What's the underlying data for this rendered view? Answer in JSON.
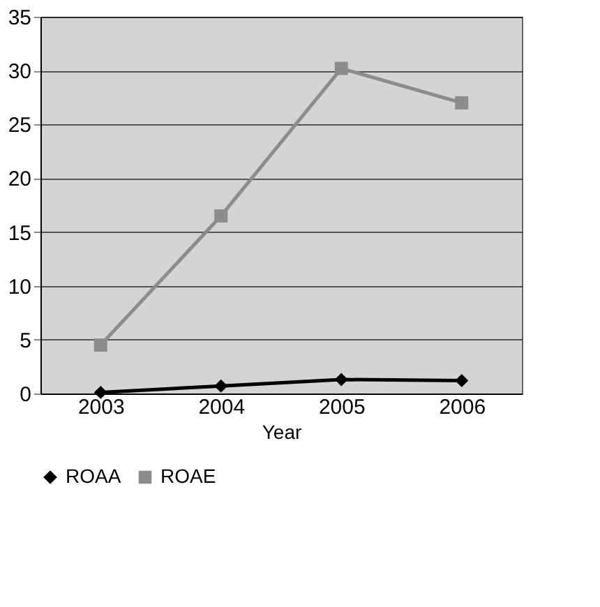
{
  "chart_data": {
    "type": "line",
    "xlabel": "Year",
    "categories": [
      "2003",
      "2004",
      "2005",
      "2006"
    ],
    "series": [
      {
        "name": "ROAA",
        "color": "#000000",
        "marker": "diamond",
        "values": [
          0.1,
          0.7,
          1.3,
          1.2
        ]
      },
      {
        "name": "ROAE",
        "color": "#8c8c8c",
        "marker": "square",
        "values": [
          4.5,
          16.5,
          30.2,
          27
        ]
      }
    ],
    "ylim": [
      0,
      35
    ],
    "yticks": [
      0,
      5,
      10,
      15,
      20,
      25,
      30,
      35
    ],
    "grid": "y",
    "legend": "bottom",
    "line_style": "solid"
  }
}
